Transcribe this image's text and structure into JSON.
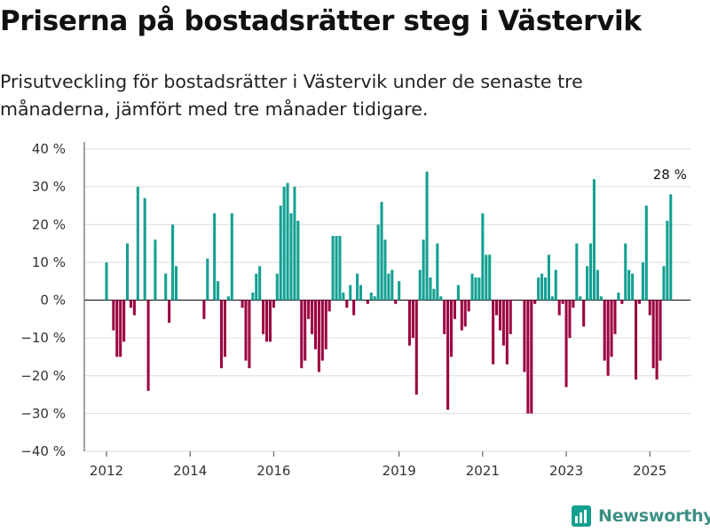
{
  "title": "Priserna på bostadsrätter steg i Västervik",
  "subtitle": "Prisutveckling för bostadsrätter i Västervik under de senaste tre månaderna, jämfört med tre månader tidigare.",
  "brand": {
    "name": "Newsworthy"
  },
  "colors": {
    "positive": "#13a092",
    "negative": "#9b0340",
    "brand": "#3d8f84"
  },
  "chart_data": {
    "type": "bar",
    "x_start": "2012-01",
    "x_end": "2025-04",
    "y_unit": "%",
    "ylim": [
      -40,
      40
    ],
    "yticks": [
      40,
      30,
      20,
      10,
      0,
      -10,
      -20,
      -30,
      -40
    ],
    "ytick_labels": [
      "40 %",
      "30 %",
      "20 %",
      "10 %",
      "0 %",
      "−10 %",
      "−20 %",
      "−30 %",
      "−40 %"
    ],
    "xtick_labels": [
      "2012",
      "2014",
      "2016",
      "2019",
      "2021",
      "2023",
      "2025"
    ],
    "annotation": "28 %",
    "grid": true,
    "values": [
      10,
      null,
      -8,
      -15,
      -15,
      -11,
      15,
      -2,
      -4,
      30,
      null,
      27,
      -24,
      null,
      16,
      null,
      null,
      7,
      -6,
      20,
      9,
      null,
      null,
      null,
      null,
      null,
      null,
      null,
      -5,
      11,
      null,
      23,
      5,
      -18,
      -15,
      1,
      23,
      null,
      null,
      -2,
      -16,
      -18,
      2,
      7,
      9,
      -9,
      -11,
      -11,
      -2,
      7,
      25,
      30,
      31,
      23,
      30,
      21,
      -18,
      -16,
      -5,
      -9,
      -13,
      -19,
      -16,
      -13,
      -3,
      17,
      17,
      17,
      2,
      -2,
      4,
      -4,
      7,
      4,
      0,
      -1,
      2,
      1,
      20,
      26,
      16,
      7,
      8,
      -1,
      5,
      null,
      null,
      -12,
      -10,
      -25,
      8,
      16,
      34,
      6,
      3,
      15,
      1,
      -9,
      -29,
      -15,
      -5,
      4,
      -8,
      -7,
      -3,
      7,
      6,
      6,
      23,
      12,
      12,
      -17,
      -4,
      -8,
      -12,
      -17,
      -9,
      null,
      null,
      null,
      -19,
      -30,
      -30,
      -1,
      6,
      7,
      6,
      12,
      1,
      8,
      -4,
      -1,
      -23,
      -10,
      -2,
      15,
      1,
      -7,
      9,
      15,
      32,
      8,
      1,
      -16,
      -20,
      -15,
      -9,
      2,
      -1,
      15,
      8,
      7,
      -21,
      -1,
      10,
      25,
      -4,
      -18,
      -21,
      -16,
      9,
      21,
      28
    ]
  }
}
